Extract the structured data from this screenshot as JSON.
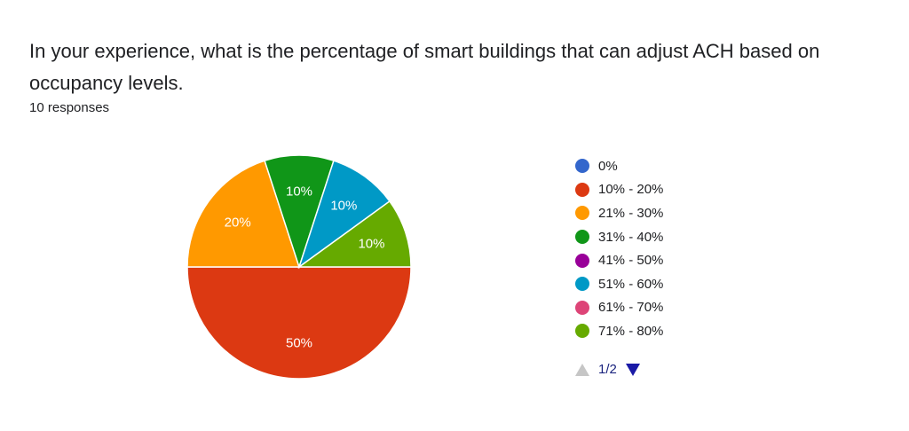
{
  "question": {
    "title": "In your experience, what is the percentage of smart buildings that can adjust ACH based on occupancy levels.",
    "responses": "10 responses"
  },
  "chart_data": {
    "type": "pie",
    "title": "",
    "slices": [
      {
        "label": "0%",
        "value": 0,
        "color": "#3366cc"
      },
      {
        "label": "10% - 20%",
        "value": 50,
        "color": "#dc3912"
      },
      {
        "label": "21% - 30%",
        "value": 20,
        "color": "#ff9900"
      },
      {
        "label": "31% - 40%",
        "value": 10,
        "color": "#109618"
      },
      {
        "label": "41% - 50%",
        "value": 0,
        "color": "#990099"
      },
      {
        "label": "51% - 60%",
        "value": 10,
        "color": "#0099c6"
      },
      {
        "label": "61% - 70%",
        "value": 0,
        "color": "#dd4477"
      },
      {
        "label": "71% - 80%",
        "value": 10,
        "color": "#66aa00"
      }
    ],
    "data_labels": [
      "50%",
      "20%",
      "10%",
      "10%",
      "10%"
    ],
    "legend_position": "right"
  },
  "pager": {
    "label": "1/2",
    "prev_icon": "triangle-up-icon",
    "next_icon": "triangle-down-icon"
  }
}
